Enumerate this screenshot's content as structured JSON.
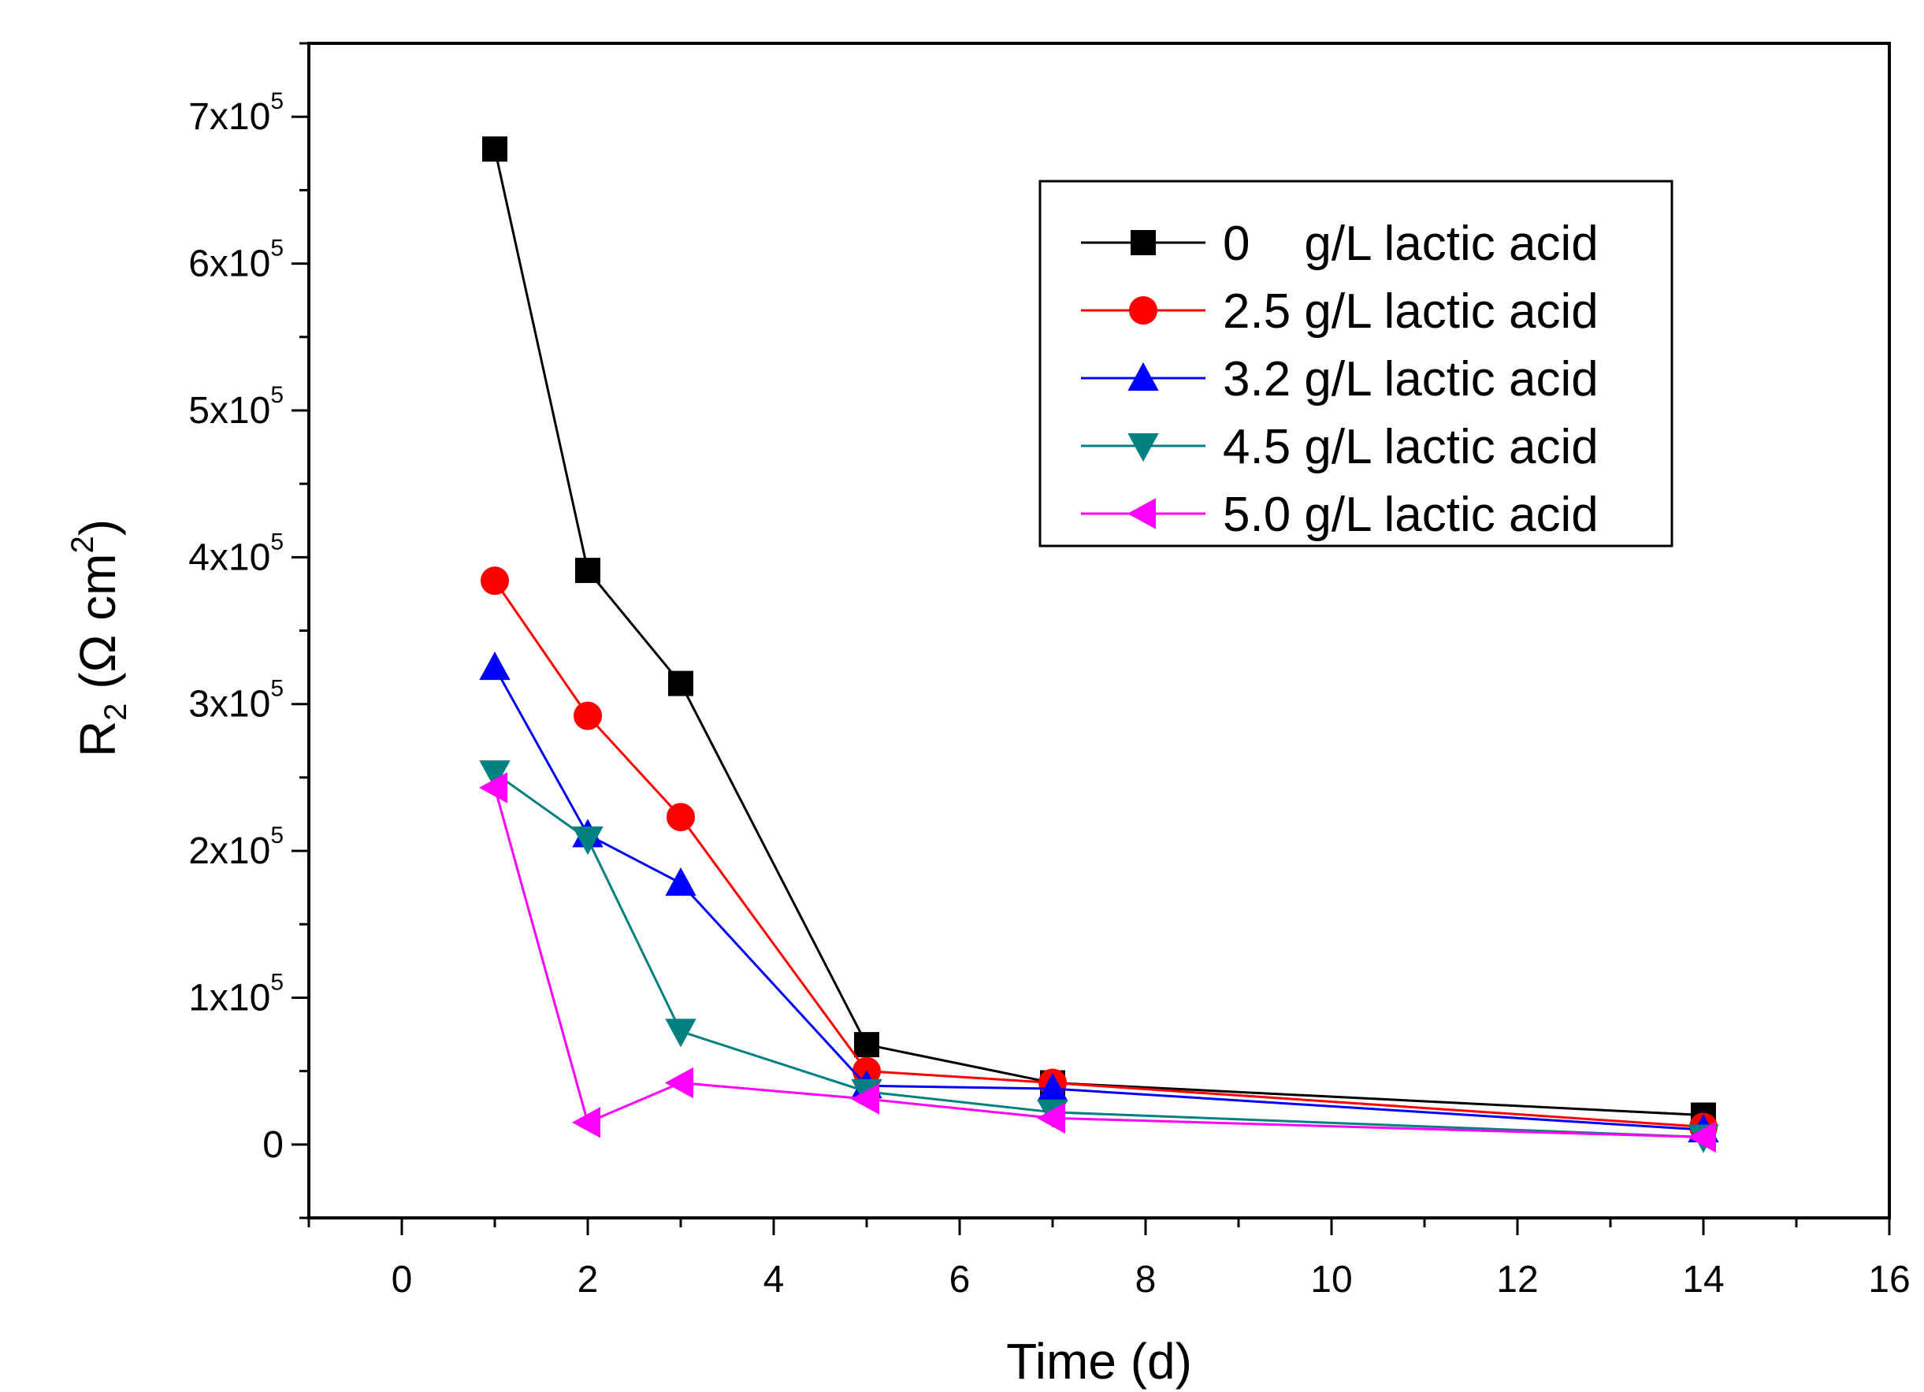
{
  "chart_data": {
    "type": "line",
    "title": "",
    "xlabel": "Time (d)",
    "ylabel": {
      "main": "R",
      "sub": "2",
      "unit_open": " (Ω cm",
      "unit_sup": "2",
      "unit_close": ")"
    },
    "xlim": [
      -1,
      16
    ],
    "ylim": [
      -50000,
      750000
    ],
    "x_ticks": [
      0,
      2,
      4,
      6,
      8,
      10,
      12,
      14,
      16
    ],
    "x_tick_labels": [
      "0",
      "2",
      "4",
      "6",
      "8",
      "10",
      "12",
      "14",
      "16"
    ],
    "y_ticks": [
      {
        "value": 0,
        "base": "0",
        "exp": ""
      },
      {
        "value": 100000,
        "base": "1x10",
        "exp": "5"
      },
      {
        "value": 200000,
        "base": "2x10",
        "exp": "5"
      },
      {
        "value": 300000,
        "base": "3x10",
        "exp": "5"
      },
      {
        "value": 400000,
        "base": "4x10",
        "exp": "5"
      },
      {
        "value": 500000,
        "base": "5x10",
        "exp": "5"
      },
      {
        "value": 600000,
        "base": "6x10",
        "exp": "5"
      },
      {
        "value": 700000,
        "base": "7x10",
        "exp": "5"
      }
    ],
    "grid": false,
    "legend_position": "top-right",
    "series": [
      {
        "name": "0    g/L lactic acid",
        "color": "#000000",
        "marker": "square",
        "x": [
          1,
          2,
          3,
          5,
          7,
          14
        ],
        "y": [
          678000,
          391000,
          314000,
          68000,
          42000,
          20000
        ]
      },
      {
        "name": "2.5 g/L lactic acid",
        "color": "#ff0000",
        "marker": "circle",
        "x": [
          1,
          2,
          3,
          5,
          7,
          14
        ],
        "y": [
          384000,
          292000,
          223000,
          50000,
          42000,
          12000
        ]
      },
      {
        "name": "3.2 g/L lactic acid",
        "color": "#0000ff",
        "marker": "triangle-up",
        "x": [
          1,
          2,
          3,
          5,
          7,
          14
        ],
        "y": [
          325000,
          211000,
          178000,
          40000,
          38000,
          10000
        ]
      },
      {
        "name": "4.5 g/L lactic acid",
        "color": "#008080",
        "marker": "triangle-down",
        "x": [
          1,
          2,
          3,
          5,
          7,
          14
        ],
        "y": [
          253000,
          208000,
          77000,
          36000,
          22000,
          5000
        ]
      },
      {
        "name": "5.0 g/L lactic acid",
        "color": "#ff00ff",
        "marker": "triangle-left",
        "x": [
          1,
          2,
          3,
          5,
          7,
          14
        ],
        "y": [
          243000,
          15000,
          42000,
          31000,
          18000,
          5000
        ]
      }
    ]
  }
}
